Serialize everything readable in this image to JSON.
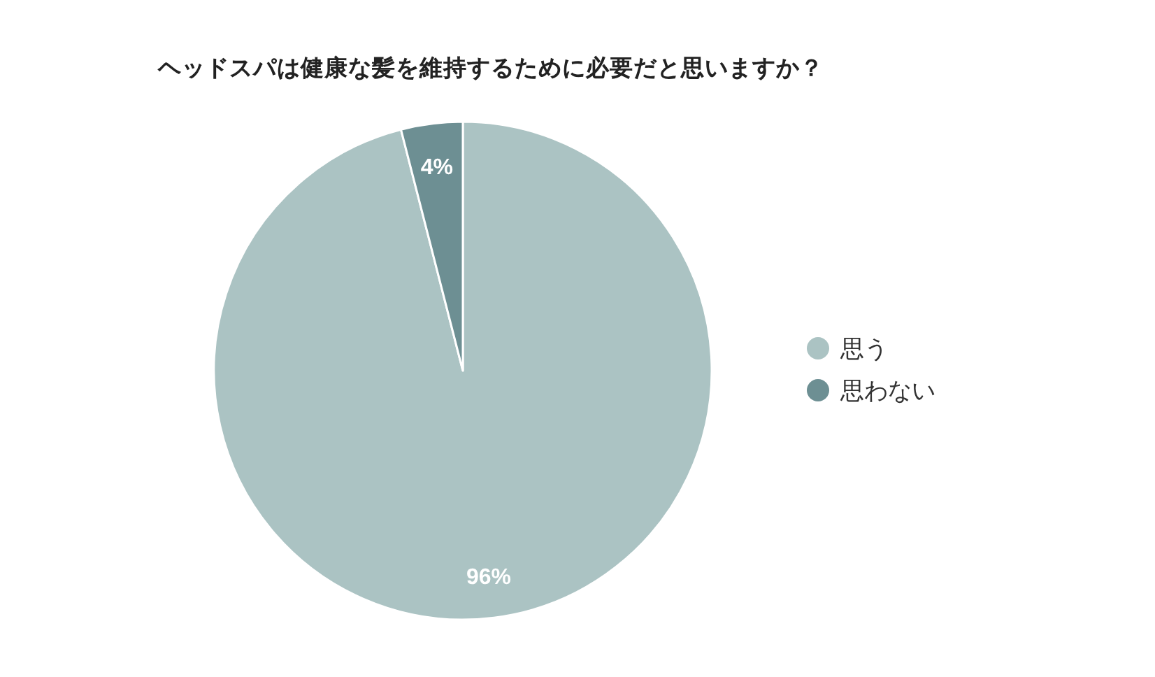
{
  "chart_data": {
    "type": "pie",
    "title": "ヘッドスパは健康な髪を維持するために必要だと思いますか？",
    "categories": [
      "思う",
      "思わない"
    ],
    "values": [
      96,
      4
    ],
    "colors": [
      "#abc3c3",
      "#6d8f93"
    ],
    "value_labels": [
      "96%",
      "4%"
    ],
    "legend": "right"
  }
}
